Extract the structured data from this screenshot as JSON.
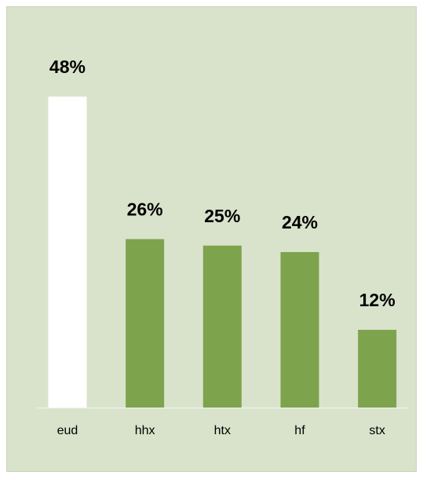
{
  "chart_data": {
    "type": "bar",
    "categories": [
      "eud",
      "hhx",
      "htx",
      "hf",
      "stx"
    ],
    "values": [
      48,
      26,
      25,
      24,
      12
    ],
    "value_labels": [
      "48%",
      "26%",
      "25%",
      "24%",
      "12%"
    ],
    "colors": [
      "#ffffff",
      "#7ea34d",
      "#7ea34d",
      "#7ea34d",
      "#7ea34d"
    ],
    "background": "#d9e3cb"
  }
}
